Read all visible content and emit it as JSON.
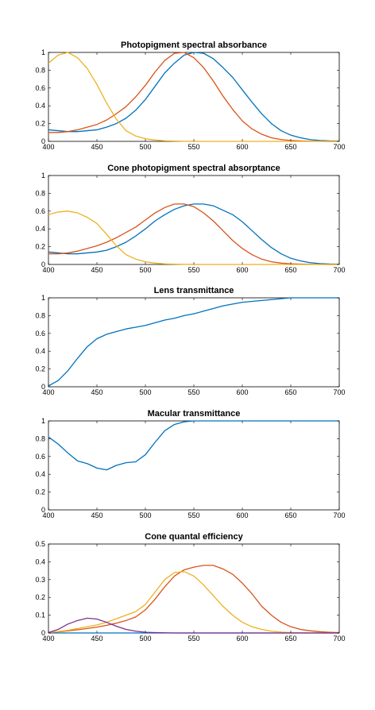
{
  "colors": {
    "blue": "#0072BD",
    "orange": "#D95319",
    "yellow": "#EDB120",
    "purple": "#7E2F8E"
  },
  "chart_data": [
    {
      "type": "line",
      "title": "Photopigment spectral absorbance",
      "xlim": [
        400,
        700
      ],
      "ylim": [
        0,
        1
      ],
      "xticks": [
        400,
        450,
        500,
        550,
        600,
        650,
        700
      ],
      "xtick_labels": [
        "400",
        "450",
        "500",
        "550",
        "600",
        "650",
        "700"
      ],
      "yticks": [
        0,
        0.2,
        0.4,
        0.6,
        0.8,
        1
      ],
      "ytick_labels": [
        "0",
        "0.2",
        "0.4",
        "0.6",
        "0.8",
        "1"
      ],
      "grid": false,
      "x": [
        400,
        410,
        420,
        430,
        440,
        450,
        460,
        470,
        480,
        490,
        500,
        510,
        520,
        530,
        540,
        550,
        560,
        570,
        580,
        590,
        600,
        610,
        620,
        630,
        640,
        650,
        660,
        670,
        680,
        690,
        700
      ],
      "series": [
        {
          "color": "#0072BD",
          "values": [
            0.13,
            0.12,
            0.11,
            0.11,
            0.12,
            0.13,
            0.16,
            0.2,
            0.26,
            0.35,
            0.47,
            0.62,
            0.77,
            0.88,
            0.97,
            1.0,
            0.99,
            0.93,
            0.83,
            0.72,
            0.58,
            0.44,
            0.31,
            0.2,
            0.12,
            0.07,
            0.04,
            0.02,
            0.01,
            0.005,
            0.003
          ]
        },
        {
          "color": "#D95319",
          "values": [
            0.1,
            0.1,
            0.11,
            0.13,
            0.16,
            0.19,
            0.24,
            0.31,
            0.39,
            0.5,
            0.63,
            0.78,
            0.91,
            0.99,
            1.0,
            0.94,
            0.83,
            0.68,
            0.51,
            0.36,
            0.23,
            0.14,
            0.08,
            0.04,
            0.02,
            0.01,
            0.005,
            0.002,
            0.001,
            0.0005,
            0.0002
          ]
        },
        {
          "color": "#EDB120",
          "values": [
            0.88,
            0.97,
            1.0,
            0.94,
            0.82,
            0.64,
            0.43,
            0.25,
            0.12,
            0.06,
            0.03,
            0.015,
            0.007,
            0.003,
            0.001,
            0.0005,
            0.0002,
            0.0001,
            0,
            0,
            0,
            0,
            0,
            0,
            0,
            0,
            0,
            0,
            0,
            0,
            0
          ]
        }
      ]
    },
    {
      "type": "line",
      "title": "Cone photopigment spectral absorptance",
      "xlim": [
        400,
        700
      ],
      "ylim": [
        0,
        1
      ],
      "xticks": [
        400,
        450,
        500,
        550,
        600,
        650,
        700
      ],
      "xtick_labels": [
        "400",
        "450",
        "500",
        "550",
        "600",
        "650",
        "700"
      ],
      "yticks": [
        0,
        0.2,
        0.4,
        0.6,
        0.8,
        1
      ],
      "ytick_labels": [
        "0",
        "0.2",
        "0.4",
        "0.6",
        "0.8",
        "1"
      ],
      "grid": false,
      "x": [
        400,
        410,
        420,
        430,
        440,
        450,
        460,
        470,
        480,
        490,
        500,
        510,
        520,
        530,
        540,
        550,
        560,
        570,
        580,
        590,
        600,
        610,
        620,
        630,
        640,
        650,
        660,
        670,
        680,
        690,
        700
      ],
      "series": [
        {
          "color": "#0072BD",
          "values": [
            0.14,
            0.13,
            0.12,
            0.12,
            0.13,
            0.14,
            0.16,
            0.2,
            0.25,
            0.32,
            0.4,
            0.49,
            0.56,
            0.62,
            0.66,
            0.68,
            0.68,
            0.66,
            0.61,
            0.56,
            0.48,
            0.38,
            0.28,
            0.19,
            0.12,
            0.07,
            0.04,
            0.02,
            0.01,
            0.005,
            0.003
          ]
        },
        {
          "color": "#D95319",
          "values": [
            0.12,
            0.12,
            0.13,
            0.15,
            0.18,
            0.21,
            0.25,
            0.3,
            0.36,
            0.42,
            0.5,
            0.58,
            0.64,
            0.68,
            0.68,
            0.65,
            0.58,
            0.49,
            0.38,
            0.27,
            0.18,
            0.11,
            0.06,
            0.03,
            0.015,
            0.008,
            0.004,
            0.002,
            0.001,
            0.0005,
            0.0002
          ]
        },
        {
          "color": "#EDB120",
          "values": [
            0.56,
            0.59,
            0.6,
            0.58,
            0.53,
            0.46,
            0.34,
            0.21,
            0.11,
            0.06,
            0.03,
            0.015,
            0.007,
            0.003,
            0.001,
            0.0005,
            0.0002,
            0.0001,
            0,
            0,
            0,
            0,
            0,
            0,
            0,
            0,
            0,
            0,
            0,
            0,
            0
          ]
        }
      ]
    },
    {
      "type": "line",
      "title": "Lens transmittance",
      "xlim": [
        400,
        700
      ],
      "ylim": [
        0,
        1
      ],
      "xticks": [
        400,
        450,
        500,
        550,
        600,
        650,
        700
      ],
      "xtick_labels": [
        "400",
        "450",
        "500",
        "550",
        "600",
        "650",
        "700"
      ],
      "yticks": [
        0,
        0.2,
        0.4,
        0.6,
        0.8,
        1
      ],
      "ytick_labels": [
        "0",
        "0.2",
        "0.4",
        "0.6",
        "0.8",
        "1"
      ],
      "grid": false,
      "x": [
        400,
        410,
        420,
        430,
        440,
        450,
        460,
        470,
        480,
        490,
        500,
        510,
        520,
        530,
        540,
        550,
        560,
        570,
        580,
        590,
        600,
        610,
        620,
        630,
        640,
        650,
        660,
        670,
        680,
        690,
        700
      ],
      "series": [
        {
          "color": "#0072BD",
          "values": [
            0.01,
            0.07,
            0.18,
            0.32,
            0.45,
            0.54,
            0.59,
            0.62,
            0.65,
            0.67,
            0.69,
            0.72,
            0.75,
            0.77,
            0.8,
            0.82,
            0.85,
            0.88,
            0.91,
            0.93,
            0.95,
            0.96,
            0.97,
            0.98,
            0.99,
            1.0,
            1.0,
            1.0,
            1.0,
            1.0,
            1.0
          ]
        }
      ]
    },
    {
      "type": "line",
      "title": "Macular transmittance",
      "xlim": [
        400,
        700
      ],
      "ylim": [
        0,
        1
      ],
      "xticks": [
        400,
        450,
        500,
        550,
        600,
        650,
        700
      ],
      "xtick_labels": [
        "400",
        "450",
        "500",
        "550",
        "600",
        "650",
        "700"
      ],
      "yticks": [
        0,
        0.2,
        0.4,
        0.6,
        0.8,
        1
      ],
      "ytick_labels": [
        "0",
        "0.2",
        "0.4",
        "0.6",
        "0.8",
        "1"
      ],
      "grid": false,
      "x": [
        400,
        410,
        420,
        430,
        440,
        450,
        460,
        470,
        480,
        490,
        500,
        510,
        520,
        530,
        540,
        550,
        560,
        570,
        580,
        590,
        600,
        610,
        620,
        630,
        640,
        650,
        660,
        670,
        680,
        690,
        700
      ],
      "series": [
        {
          "color": "#0072BD",
          "values": [
            0.82,
            0.74,
            0.64,
            0.55,
            0.52,
            0.47,
            0.45,
            0.5,
            0.53,
            0.54,
            0.62,
            0.76,
            0.89,
            0.96,
            0.99,
            1.0,
            1.0,
            1.0,
            1.0,
            1.0,
            1.0,
            1.0,
            1.0,
            1.0,
            1.0,
            1.0,
            1.0,
            1.0,
            1.0,
            1.0,
            1.0
          ]
        }
      ]
    },
    {
      "type": "line",
      "title": "Cone quantal efficiency",
      "xlim": [
        400,
        700
      ],
      "ylim": [
        0,
        0.5
      ],
      "xticks": [
        400,
        450,
        500,
        550,
        600,
        650,
        700
      ],
      "xtick_labels": [
        "400",
        "450",
        "500",
        "550",
        "600",
        "650",
        "700"
      ],
      "yticks": [
        0,
        0.1,
        0.2,
        0.3,
        0.4,
        0.5
      ],
      "ytick_labels": [
        "0",
        "0.1",
        "0.2",
        "0.3",
        "0.4",
        "0.5"
      ],
      "grid": false,
      "x": [
        400,
        410,
        420,
        430,
        440,
        450,
        460,
        470,
        480,
        490,
        500,
        510,
        520,
        530,
        540,
        550,
        560,
        570,
        580,
        590,
        600,
        610,
        620,
        630,
        640,
        650,
        660,
        670,
        680,
        690,
        700
      ],
      "series": [
        {
          "color": "#0072BD",
          "values": [
            0,
            0,
            0,
            0,
            0,
            0,
            0,
            0,
            0,
            0,
            0,
            0,
            0,
            0,
            0,
            0,
            0,
            0,
            0,
            0,
            0,
            0,
            0,
            0,
            0,
            0,
            0,
            0,
            0,
            0,
            0
          ]
        },
        {
          "color": "#D95319",
          "values": [
            0.002,
            0.006,
            0.012,
            0.018,
            0.025,
            0.033,
            0.043,
            0.055,
            0.07,
            0.09,
            0.13,
            0.19,
            0.26,
            0.32,
            0.355,
            0.37,
            0.38,
            0.38,
            0.36,
            0.33,
            0.28,
            0.22,
            0.15,
            0.1,
            0.06,
            0.035,
            0.02,
            0.012,
            0.007,
            0.004,
            0.002
          ]
        },
        {
          "color": "#EDB120",
          "values": [
            0.003,
            0.008,
            0.015,
            0.025,
            0.035,
            0.045,
            0.06,
            0.08,
            0.1,
            0.12,
            0.16,
            0.23,
            0.3,
            0.34,
            0.345,
            0.32,
            0.27,
            0.21,
            0.15,
            0.1,
            0.06,
            0.035,
            0.02,
            0.01,
            0.005,
            0.002,
            0.001,
            0,
            0,
            0,
            0
          ]
        },
        {
          "color": "#7E2F8E",
          "values": [
            0.002,
            0.02,
            0.05,
            0.07,
            0.083,
            0.078,
            0.06,
            0.038,
            0.02,
            0.01,
            0.004,
            0.002,
            0.001,
            0,
            0,
            0,
            0,
            0,
            0,
            0,
            0,
            0,
            0,
            0,
            0,
            0,
            0,
            0,
            0,
            0,
            0
          ]
        }
      ]
    }
  ]
}
